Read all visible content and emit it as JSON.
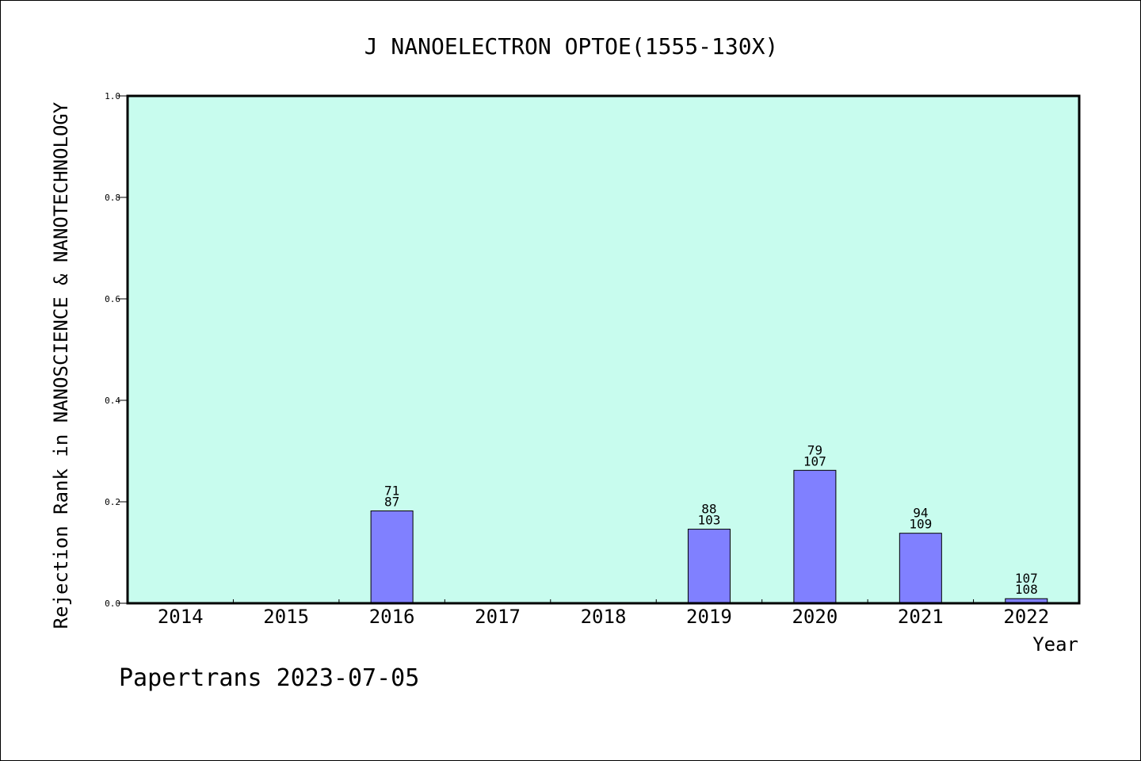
{
  "chart_data": {
    "type": "bar",
    "title": "J NANOELECTRON OPTOE(1555-130X)",
    "xlabel": "Year",
    "ylabel": "Rejection Rank in NANOSCIENCE & NANOTECHNOLOGY",
    "categories": [
      "2014",
      "2015",
      "2016",
      "2017",
      "2018",
      "2019",
      "2020",
      "2021",
      "2022"
    ],
    "values": [
      0,
      0,
      0.182,
      0,
      0,
      0.146,
      0.262,
      0.138,
      0.009
    ],
    "labels_top": [
      "",
      "",
      "71",
      "",
      "",
      "88",
      "79",
      "94",
      "107"
    ],
    "labels_bottom": [
      "",
      "",
      "87",
      "",
      "",
      "103",
      "107",
      "109",
      "108"
    ],
    "ylim": [
      0,
      1.0
    ],
    "yticks": [
      "0.0",
      "0.2",
      "0.4",
      "0.6",
      "0.8",
      "1.0"
    ],
    "grid": false,
    "colors": {
      "plot_background": "#c8fcee",
      "bar_fill": "#8080ff",
      "bar_stroke": "#000000"
    }
  },
  "footer": {
    "text": "Papertrans 2023-07-05"
  }
}
